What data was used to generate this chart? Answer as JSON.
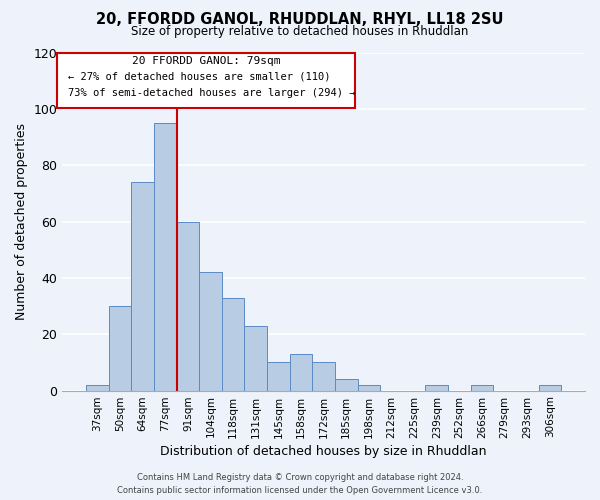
{
  "title": "20, FFORDD GANOL, RHUDDLAN, RHYL, LL18 2SU",
  "subtitle": "Size of property relative to detached houses in Rhuddlan",
  "xlabel": "Distribution of detached houses by size in Rhuddlan",
  "ylabel": "Number of detached properties",
  "bar_labels": [
    "37sqm",
    "50sqm",
    "64sqm",
    "77sqm",
    "91sqm",
    "104sqm",
    "118sqm",
    "131sqm",
    "145sqm",
    "158sqm",
    "172sqm",
    "185sqm",
    "198sqm",
    "212sqm",
    "225sqm",
    "239sqm",
    "252sqm",
    "266sqm",
    "279sqm",
    "293sqm",
    "306sqm"
  ],
  "bar_values": [
    2,
    30,
    74,
    95,
    60,
    42,
    33,
    23,
    10,
    13,
    10,
    4,
    2,
    0,
    0,
    2,
    0,
    2,
    0,
    0,
    2
  ],
  "bar_color": "#b8cce4",
  "bar_edge_color": "#5b8ac5",
  "ylim": [
    0,
    120
  ],
  "yticks": [
    0,
    20,
    40,
    60,
    80,
    100,
    120
  ],
  "annotation_title": "20 FFORDD GANOL: 79sqm",
  "annotation_line1": "← 27% of detached houses are smaller (110)",
  "annotation_line2": "73% of semi-detached houses are larger (294) →",
  "footer_line1": "Contains HM Land Registry data © Crown copyright and database right 2024.",
  "footer_line2": "Contains public sector information licensed under the Open Government Licence v3.0.",
  "background_color": "#edf2fb",
  "grid_color": "#ffffff",
  "annotation_box_color": "#ffffff",
  "annotation_box_edge": "#cc0000",
  "property_line_color": "#cc0000",
  "property_line_x": 3.5
}
